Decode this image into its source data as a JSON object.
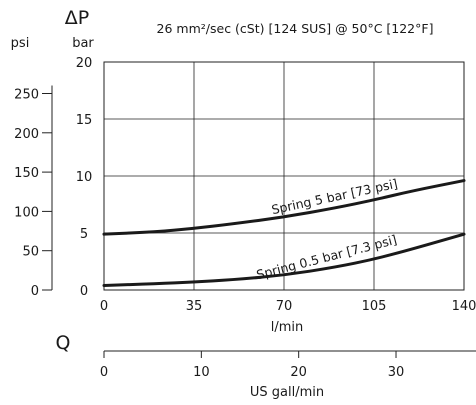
{
  "chart_data": {
    "type": "line",
    "title": "26 mm²/sec (cSt) [124 SUS] @ 50°C [122°F]",
    "y_symbol": "ΔP",
    "y_unit_left": "psi",
    "y_unit_right": "bar",
    "x_symbol": "Q",
    "x_unit": "l/min",
    "x2_unit": "US gall/min",
    "xlim": [
      0,
      140
    ],
    "ylim": [
      0,
      20
    ],
    "x_ticks": [
      0,
      35,
      70,
      105,
      140
    ],
    "y_ticks_bar": [
      0,
      5,
      10,
      15,
      20
    ],
    "y_ticks_psi": [
      0,
      50,
      100,
      150,
      200,
      250
    ],
    "x2_ticks": [
      0,
      10,
      20,
      30,
      40
    ],
    "grid": true,
    "series": [
      {
        "name": "Spring 5 bar [73 psi]",
        "x": [
          0,
          20,
          35,
          50,
          70,
          90,
          105,
          120,
          140
        ],
        "y": [
          4.9,
          5.1,
          5.4,
          5.8,
          6.4,
          7.2,
          7.9,
          8.7,
          9.6
        ]
      },
      {
        "name": "Spring 0.5 bar [7.3 psi]",
        "x": [
          0,
          20,
          35,
          50,
          70,
          90,
          105,
          120,
          140
        ],
        "y": [
          0.4,
          0.55,
          0.7,
          0.9,
          1.3,
          2.0,
          2.7,
          3.6,
          4.9
        ]
      }
    ]
  }
}
